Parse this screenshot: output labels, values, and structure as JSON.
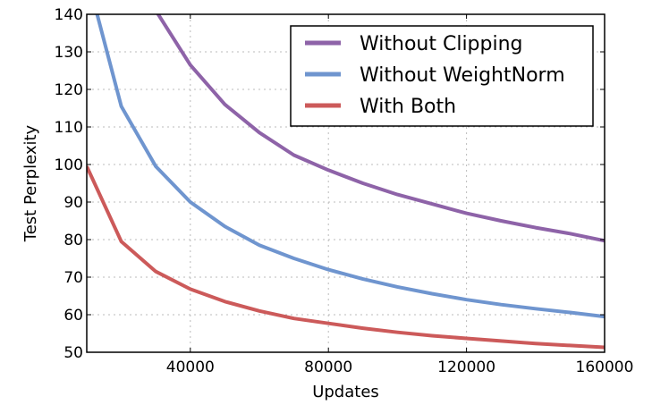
{
  "chart_data": {
    "type": "line",
    "title": "",
    "xlabel": "Updates",
    "ylabel": "Test Perplexity",
    "xlim": [
      10000,
      160000
    ],
    "ylim": [
      50,
      140
    ],
    "xticks": [
      40000,
      80000,
      120000,
      160000
    ],
    "yticks": [
      50,
      60,
      70,
      80,
      90,
      100,
      110,
      120,
      130,
      140
    ],
    "grid": true,
    "legend_position": "top-right",
    "series": [
      {
        "name": "Without Clipping",
        "color": "#8e63a8",
        "x": [
          30000,
          40000,
          50000,
          60000,
          70000,
          80000,
          90000,
          100000,
          110000,
          120000,
          130000,
          140000,
          150000,
          160000
        ],
        "y": [
          141,
          126.5,
          116,
          108.5,
          102.5,
          98.5,
          95,
          92,
          89.5,
          87,
          85,
          83.2,
          81.6,
          79.7
        ]
      },
      {
        "name": "Without WeightNorm",
        "color": "#6f95cf",
        "x": [
          13000,
          20000,
          30000,
          40000,
          50000,
          60000,
          70000,
          80000,
          90000,
          100000,
          110000,
          120000,
          130000,
          140000,
          150000,
          160000
        ],
        "y": [
          140,
          115.5,
          99.5,
          90,
          83.5,
          78.5,
          75,
          72,
          69.5,
          67.4,
          65.6,
          64,
          62.7,
          61.6,
          60.6,
          59.5
        ]
      },
      {
        "name": "With Both",
        "color": "#cc5a5a",
        "x": [
          10000,
          20000,
          30000,
          40000,
          50000,
          60000,
          70000,
          80000,
          90000,
          100000,
          110000,
          120000,
          130000,
          140000,
          150000,
          160000
        ],
        "y": [
          99.5,
          79.5,
          71.5,
          66.8,
          63.5,
          61,
          59,
          57.7,
          56.4,
          55.3,
          54.4,
          53.7,
          53,
          52.3,
          51.8,
          51.3
        ]
      }
    ]
  }
}
